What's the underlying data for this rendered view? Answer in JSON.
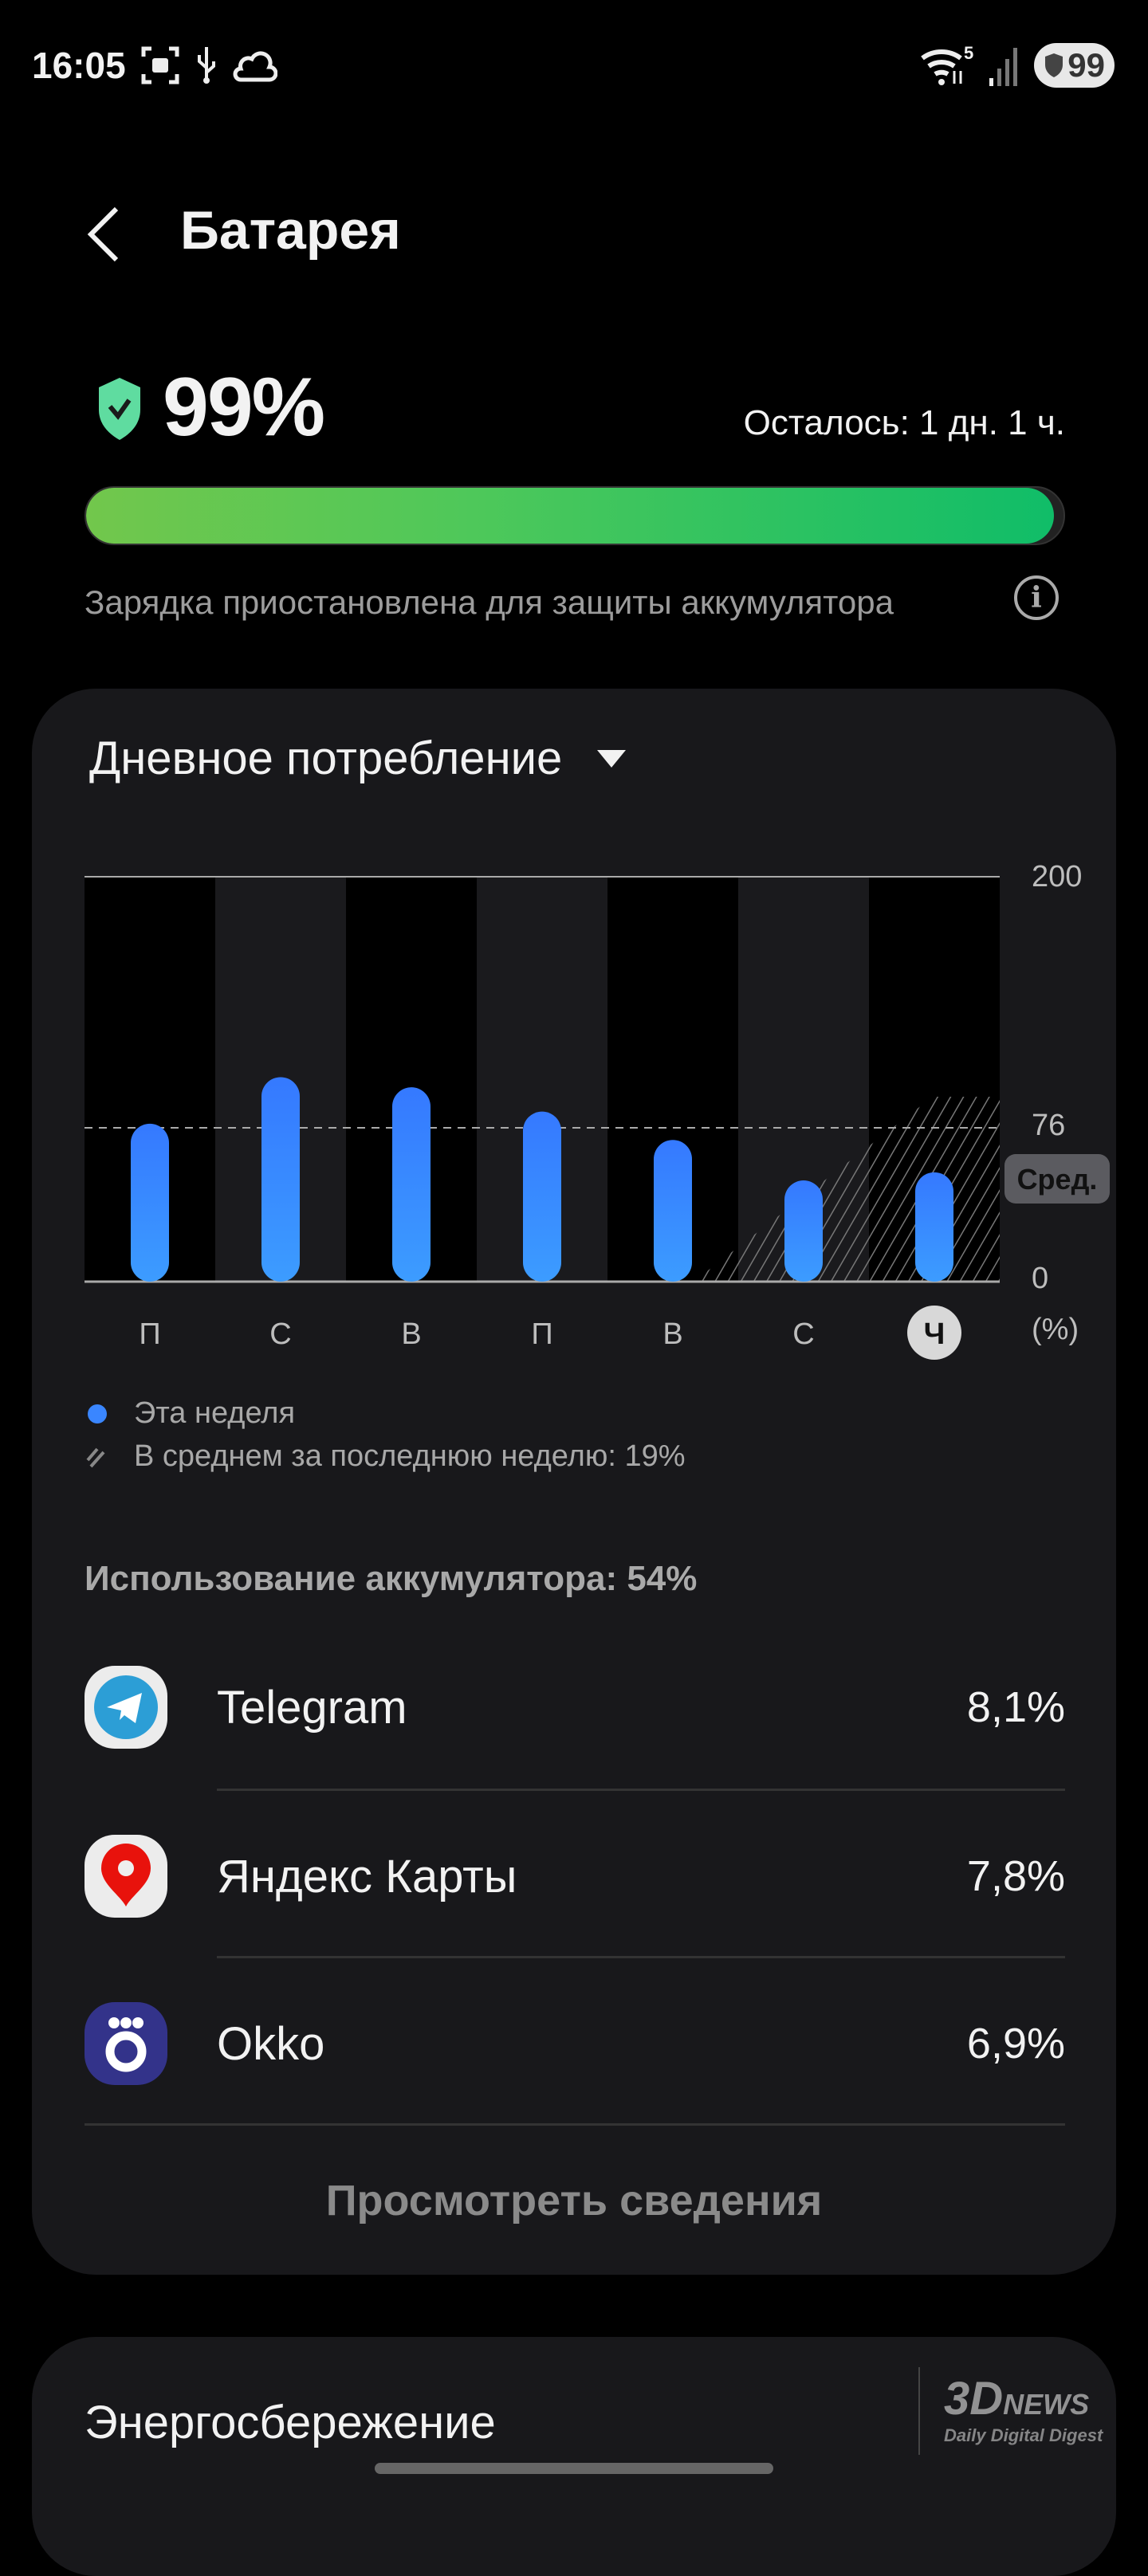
{
  "status_bar": {
    "time": "16:05",
    "battery": "99",
    "wifi_badge": "5",
    "icons": [
      "screenshot-icon",
      "usb-icon",
      "cloud-icon",
      "wifi-icon",
      "signal-icon",
      "battery-protect-icon"
    ]
  },
  "header": {
    "title": "Батарея",
    "back_icon": "chevron-left-icon"
  },
  "battery": {
    "percent_label": "99%",
    "level_percent": 99,
    "remaining": "Осталось: 1 дн. 1 ч.",
    "note": "Зарядка приостановлена для защиты аккумулятора",
    "colors": {
      "start": "#72c74c",
      "end": "#10bd68"
    }
  },
  "usage_card": {
    "dropdown": "Дневное потребление",
    "avg_badge": "Сред.",
    "legend": {
      "this_week": "Эта неделя",
      "avg": "В среднем за последнюю неделю: 19%"
    },
    "usage_title": "Использование аккумулятора: 54%",
    "apps": [
      {
        "name": "Telegram",
        "value": "8,1%",
        "icon": "telegram-icon"
      },
      {
        "name": "Яндекс Карты",
        "value": "7,8%",
        "icon": "yandex-maps-icon"
      },
      {
        "name": "Okko",
        "value": "6,9%",
        "icon": "okko-icon"
      }
    ],
    "details_button": "Просмотреть сведения"
  },
  "chart_data": {
    "type": "bar",
    "categories": [
      "П",
      "С",
      "В",
      "П",
      "В",
      "С",
      "Ч"
    ],
    "selected": "Ч",
    "series": [
      {
        "name": "Эта неделя",
        "values": [
          78,
          101,
          96,
          84,
          70,
          50,
          54
        ],
        "color": "#3a86ff"
      }
    ],
    "ylim": [
      0,
      200
    ],
    "yticks": [
      "200",
      "76",
      "0"
    ],
    "yunit": "(%)",
    "average_line": 76
  },
  "power_saving": {
    "title": "Энергосбережение"
  },
  "watermark": {
    "text": "3DNews Daily Digital Digest"
  }
}
